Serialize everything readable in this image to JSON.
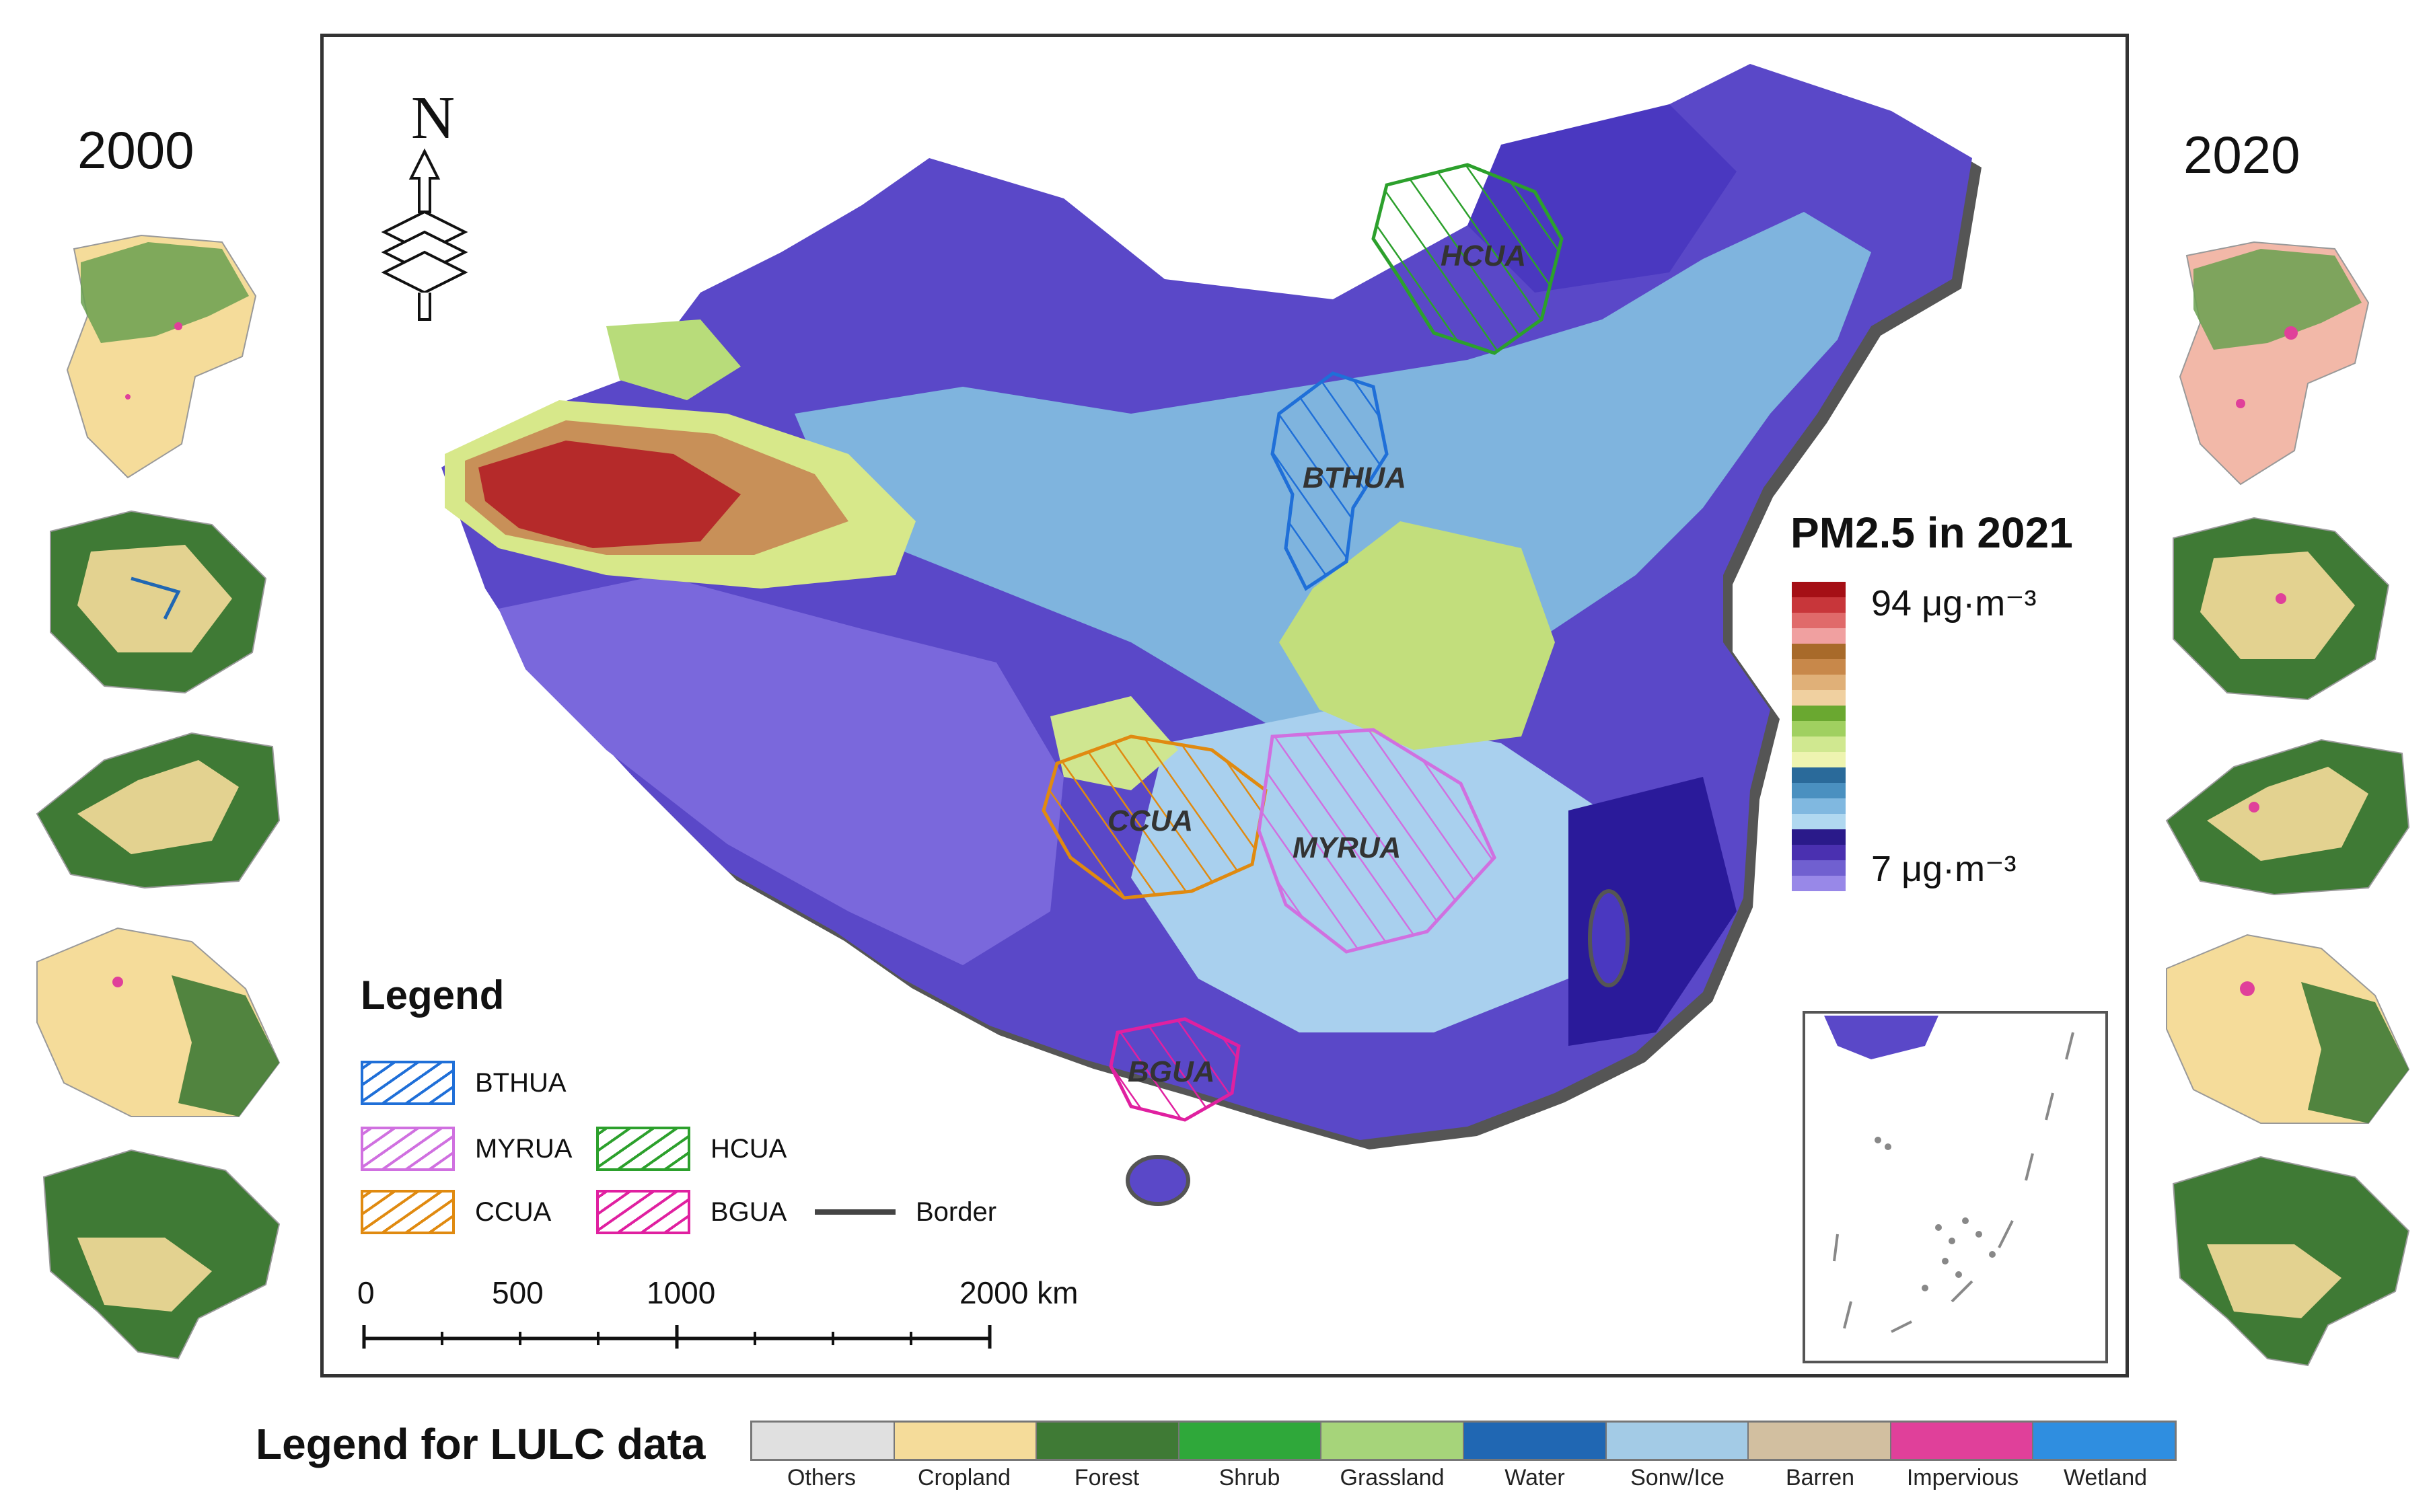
{
  "years": {
    "left": "2000",
    "right": "2020"
  },
  "pm_legend": {
    "title": "PM2.5 in 2021",
    "max_label": "94 μg·m⁻³",
    "min_label": "7 μg·m⁻³",
    "colors": [
      "#a50f15",
      "#c8363a",
      "#e06a6a",
      "#f0a0a0",
      "#a86a2a",
      "#c8884a",
      "#e0b078",
      "#f0d0a0",
      "#6aa830",
      "#a0d060",
      "#d0e890",
      "#eef4b0",
      "#2a6a9a",
      "#4a90c0",
      "#80b8e0",
      "#b0d8f0",
      "#2a1a8a",
      "#4a30b0",
      "#7060d0",
      "#9888e8"
    ]
  },
  "regions": [
    {
      "id": "BTHUA",
      "color": "#1f6fd8"
    },
    {
      "id": "HCUA",
      "color": "#2ca02c"
    },
    {
      "id": "CCUA",
      "color": "#e08a10"
    },
    {
      "id": "MYRUA",
      "color": "#d070e0"
    },
    {
      "id": "BGUA",
      "color": "#e020a0"
    }
  ],
  "legend": {
    "title": "Legend",
    "items": [
      {
        "label": "BTHUA",
        "color": "#1f6fd8"
      },
      {
        "label": "MYRUA",
        "color": "#d070e0"
      },
      {
        "label": "HCUA",
        "color": "#2ca02c"
      },
      {
        "label": "CCUA",
        "color": "#e08a10"
      },
      {
        "label": "BGUA",
        "color": "#e020a0"
      },
      {
        "label": "Border",
        "color": "#444444"
      }
    ]
  },
  "scale": {
    "labels": [
      "0",
      "500",
      "1000",
      "2000 km"
    ]
  },
  "north_label": "N",
  "lulc": {
    "title": "Legend for LULC data",
    "classes": [
      {
        "label": "Others",
        "color": "#e0e0e0"
      },
      {
        "label": "Cropland",
        "color": "#f5dc9a"
      },
      {
        "label": "Forest",
        "color": "#3f7a35"
      },
      {
        "label": "Shrub",
        "color": "#2fa83a"
      },
      {
        "label": "Grassland",
        "color": "#a6d47a"
      },
      {
        "label": "Water",
        "color": "#2067b3"
      },
      {
        "label": "Sonw/Ice",
        "color": "#a3cbe6"
      },
      {
        "label": "Barren",
        "color": "#d2bfa0"
      },
      {
        "label": "Impervious",
        "color": "#e0409a"
      },
      {
        "label": "Wetland",
        "color": "#2f8ee0"
      }
    ]
  }
}
